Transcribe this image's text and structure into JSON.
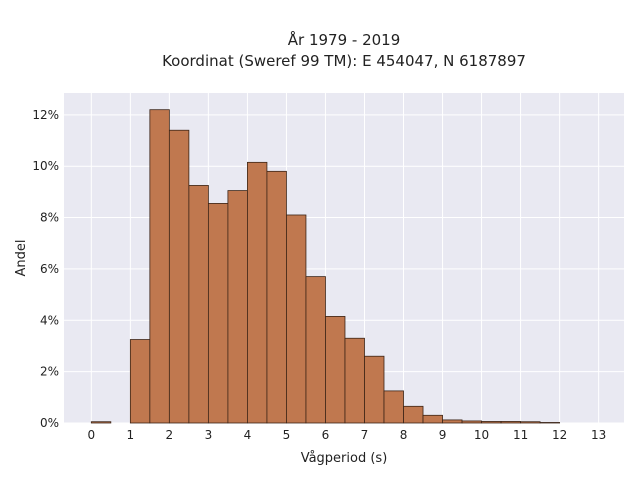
{
  "chart_data": {
    "type": "bar",
    "title_lines": [
      "År 1979 - 2019",
      "Koordinat (Sweref 99 TM): E 454047, N 6187897"
    ],
    "xlabel": "Vågperiod (s)",
    "ylabel": "Andel",
    "bin_width": 0.5,
    "bins_start": [
      0,
      0.5,
      1,
      1.5,
      2,
      2.5,
      3,
      3.5,
      4,
      4.5,
      5,
      5.5,
      6,
      6.5,
      7,
      7.5,
      8,
      8.5,
      9,
      9.5,
      10,
      10.5,
      11,
      11.5
    ],
    "values": [
      0.05,
      0,
      3.25,
      12.2,
      11.4,
      9.25,
      8.55,
      9.05,
      10.15,
      9.8,
      8.1,
      5.7,
      4.15,
      3.3,
      2.6,
      1.25,
      0.65,
      0.3,
      0.12,
      0.08,
      0.06,
      0.06,
      0.05,
      0.02
    ],
    "xlim": [
      -0.7,
      13.65
    ],
    "ylim": [
      0,
      12.85
    ],
    "xticks": [
      "0",
      "1",
      "2",
      "3",
      "4",
      "5",
      "6",
      "7",
      "8",
      "9",
      "10",
      "11",
      "12",
      "13"
    ],
    "yticks": [
      "0%",
      "2%",
      "4%",
      "6%",
      "8%",
      "10%",
      "12%"
    ],
    "grid": true,
    "bar_color": "#c0784f",
    "edge_color": "#3b2416",
    "plot_background": "#e9e9f2",
    "grid_color": "#ffffff"
  }
}
